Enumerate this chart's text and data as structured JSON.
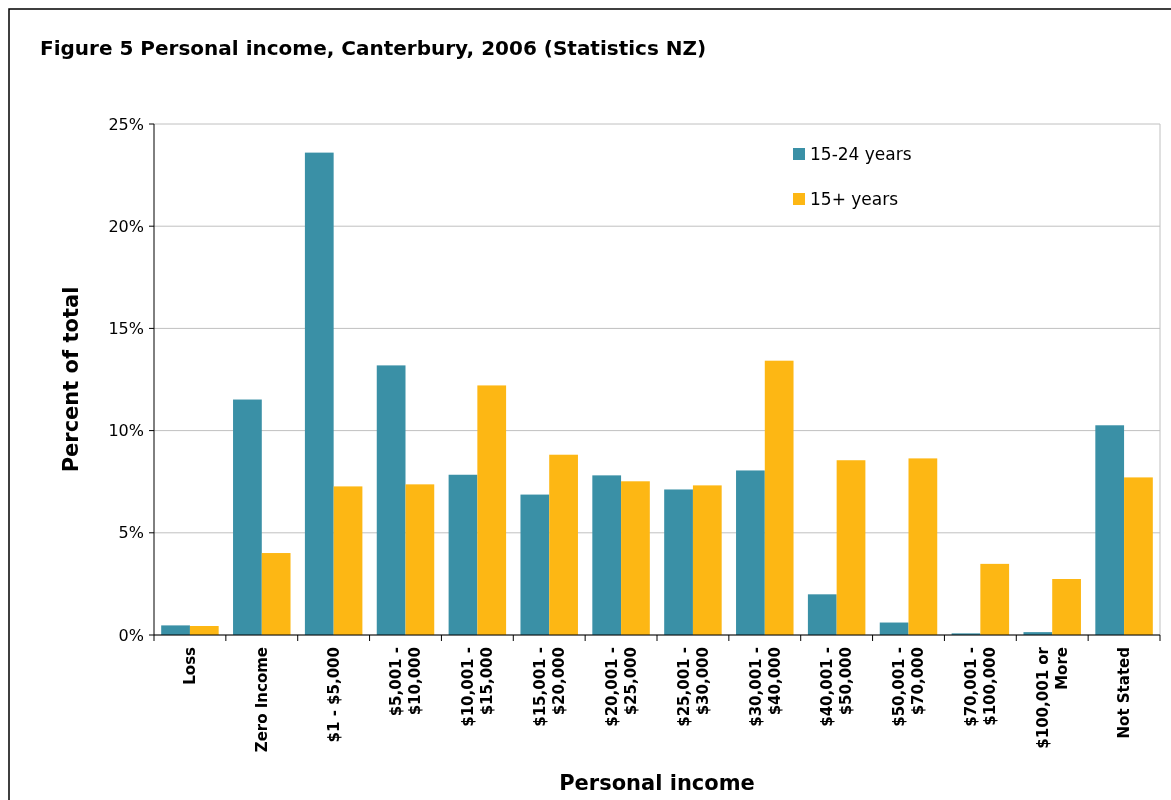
{
  "chart_data": {
    "type": "bar",
    "title": "Figure 5 Personal income, Canterbury, 2006 (Statistics NZ)",
    "xlabel": "Personal income",
    "ylabel": "Percent of total",
    "categories": [
      "Loss",
      "Zero Income",
      "$1 - $5,000",
      "$5,001 - $10,000",
      "$10,001 - $15,000",
      "$15,001 - $20,000",
      "$20,001 - $25,000",
      "$25,001 - $30,000",
      "$30,001 - $40,000",
      "$40,001 - $50,000",
      "$50,001 - $70,000",
      "$70,001 - $100,000",
      "$100,001 or More",
      "Not Stated"
    ],
    "series": [
      {
        "name": "15-24 years",
        "color": "#3a90a6",
        "values": [
          0.47,
          11.52,
          23.6,
          13.19,
          7.84,
          6.87,
          7.81,
          7.12,
          8.05,
          1.99,
          0.61,
          0.08,
          0.14,
          10.26
        ]
      },
      {
        "name": "15+ years",
        "color": "#fdb714",
        "values": [
          0.44,
          4.01,
          7.27,
          7.37,
          12.21,
          8.82,
          7.52,
          7.32,
          13.42,
          8.55,
          8.64,
          3.48,
          2.74,
          7.71
        ]
      }
    ],
    "ylim": [
      0,
      25
    ],
    "yticks": [
      {
        "value": 0,
        "label": "0%"
      },
      {
        "value": 5,
        "label": "5%"
      },
      {
        "value": 10,
        "label": "10%"
      },
      {
        "value": 15,
        "label": "15%"
      },
      {
        "value": 20,
        "label": "20%"
      },
      {
        "value": 25,
        "label": "25%"
      }
    ],
    "grid": "y",
    "legend": "top right"
  }
}
